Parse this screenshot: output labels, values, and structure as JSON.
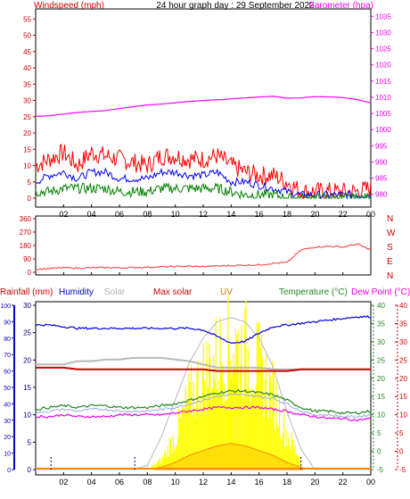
{
  "page": {
    "title": "24 hour graph day : 29 September 2022",
    "x_ticks": [
      "02",
      "04",
      "06",
      "08",
      "10",
      "12",
      "14",
      "16",
      "18",
      "20",
      "22",
      "00"
    ]
  },
  "colors": {
    "windspeed": "#ff0000",
    "wind_avg": "#0000ff",
    "wind_low": "#008000",
    "barometer": "#ff00ff",
    "direction": "#ff3333",
    "rain": "#000080",
    "humidity": "#0000dd",
    "solar": "#b8b8b8",
    "max_solar": "#cc0000",
    "uv": "#c87800",
    "temperature": "#228822",
    "dewpoint": "#ee00ee",
    "panel_bg": "#ffffff",
    "border": "#000000"
  },
  "chart_data": [
    {
      "type": "line",
      "panel": "wind-barometer",
      "title": "24 hour graph day : 29 September 2022",
      "left_axis": {
        "label": "Windspeed (mph)",
        "ticks": [
          "0",
          "5",
          "10",
          "15",
          "20",
          "25",
          "30",
          "35",
          "40",
          "45",
          "50",
          "55"
        ],
        "ylim": [
          0,
          57
        ]
      },
      "right_axis": {
        "label": "Barometer (hpa)",
        "ticks": [
          "980",
          "985",
          "990",
          "995",
          "1000",
          "1005",
          "1010",
          "1015",
          "1020",
          "1025",
          "1030",
          "1035"
        ],
        "ylim": [
          978.8,
          1036.2
        ]
      },
      "x": [
        0,
        1,
        2,
        3,
        4,
        5,
        6,
        7,
        8,
        9,
        10,
        11,
        12,
        13,
        14,
        15,
        16,
        17,
        18,
        19,
        20,
        21,
        22,
        23,
        24
      ],
      "series": [
        {
          "values": [
            10,
            12,
            14,
            10,
            14,
            13,
            12,
            11,
            10,
            13,
            13,
            12,
            12,
            13,
            10,
            8,
            7,
            7,
            5,
            2,
            2,
            2,
            2,
            2,
            3
          ],
          "axis": "left"
        },
        {
          "values": [
            5,
            7,
            8,
            6,
            8,
            8,
            6,
            6,
            6,
            8,
            8,
            7,
            7,
            8,
            5,
            5,
            4,
            3,
            2,
            1,
            1,
            1,
            1,
            1,
            1
          ],
          "axis": "left"
        },
        {
          "values": [
            2,
            2,
            3,
            3,
            3,
            3,
            2,
            2,
            2,
            3,
            3,
            3,
            3,
            3,
            2,
            1,
            1,
            1,
            0,
            0,
            0,
            0,
            0,
            0,
            0
          ],
          "axis": "left"
        },
        {
          "values": [
            1004.1,
            1004.3,
            1004.8,
            1005.3,
            1005.6,
            1005.9,
            1006.5,
            1007.1,
            1007.6,
            1007.9,
            1008.3,
            1008.7,
            1009.0,
            1009.2,
            1009.5,
            1009.8,
            1010.1,
            1010.3,
            1009.7,
            1009.8,
            1010.2,
            1010.1,
            1009.9,
            1009.3,
            1008.3
          ],
          "axis": "right"
        }
      ]
    },
    {
      "type": "line",
      "panel": "wind-direction",
      "left_axis": {
        "ticks": [
          "0",
          "90",
          "180",
          "270",
          "360"
        ],
        "ylim": [
          0,
          360
        ]
      },
      "right_labels": [
        "N",
        "W",
        "S",
        "E",
        "N"
      ],
      "x": [
        0,
        1,
        2,
        3,
        4,
        5,
        6,
        7,
        8,
        9,
        10,
        11,
        12,
        13,
        14,
        15,
        16,
        17,
        18,
        19,
        20,
        21,
        22,
        23,
        24
      ],
      "series": [
        {
          "name": "direction",
          "values": [
            20,
            25,
            30,
            28,
            30,
            32,
            30,
            32,
            34,
            36,
            38,
            40,
            38,
            42,
            45,
            48,
            50,
            60,
            65,
            150,
            170,
            175,
            170,
            190,
            150
          ]
        }
      ]
    },
    {
      "type": "line",
      "panel": "temperature-humidity",
      "header_labels": [
        "Rainfall (mm)",
        "Humidity",
        "Solar",
        "Max solar",
        "UV",
        "Temperature (°C)",
        "Dew Point (°C)"
      ],
      "axis_humidity": {
        "ticks": [
          "0",
          "10",
          "20",
          "30",
          "40",
          "50",
          "60",
          "70",
          "80",
          "90",
          "100"
        ],
        "ylim": [
          0,
          100
        ]
      },
      "axis_rain": {
        "ticks": [
          "0",
          "5",
          "10",
          "15",
          "20",
          "25",
          "30"
        ],
        "ylim": [
          0,
          30
        ]
      },
      "axis_temp": {
        "ticks": [
          "-5",
          "0",
          "5",
          "10",
          "15",
          "20",
          "25",
          "30",
          "35",
          "40"
        ],
        "ylim": [
          -5,
          40
        ]
      },
      "x": [
        0,
        1,
        2,
        3,
        4,
        5,
        6,
        7,
        8,
        9,
        10,
        11,
        12,
        13,
        14,
        15,
        16,
        17,
        18,
        19,
        20,
        21,
        22,
        23,
        24
      ],
      "series": [
        {
          "name": "Humidity",
          "values": [
            88,
            88,
            87,
            86,
            86,
            86,
            86,
            86,
            86,
            86,
            86,
            86,
            85,
            81,
            77,
            78,
            83,
            87,
            88,
            89,
            90,
            91,
            92,
            93,
            93
          ],
          "axis": "humidity"
        },
        {
          "name": "Max solar",
          "values": [
            62,
            62,
            62,
            61,
            61,
            61,
            61,
            61,
            61,
            61,
            61,
            61,
            61,
            60,
            60,
            60,
            60,
            60,
            60,
            61,
            61,
            61,
            61,
            61,
            61
          ],
          "axis": "humidity"
        },
        {
          "name": "Solar",
          "values": [
            64,
            64,
            64,
            66,
            66,
            67,
            67,
            68,
            68,
            68,
            67,
            66,
            64,
            62,
            62,
            62,
            62,
            61,
            61,
            61,
            61,
            61,
            61,
            61,
            61
          ],
          "axis": "humidity"
        },
        {
          "name": "Temperature (°C)",
          "values": [
            11.5,
            12,
            12.5,
            12,
            12.5,
            12.5,
            12,
            12,
            12,
            12.5,
            13,
            14,
            15,
            16,
            16.5,
            16.5,
            16,
            15.5,
            14,
            12,
            11,
            11,
            10.5,
            10.5,
            11
          ],
          "axis": "temp"
        },
        {
          "name": "Dew Point (°C)",
          "values": [
            9.5,
            9.5,
            10,
            9.5,
            9.5,
            9.5,
            10,
            10,
            10,
            10,
            10.5,
            11,
            11.5,
            12,
            12,
            12,
            12,
            11.5,
            11,
            10,
            9.5,
            9,
            9,
            8.5,
            9
          ],
          "axis": "temp"
        },
        {
          "name": "Rainfall (mm)",
          "values": [
            0,
            0,
            0,
            0,
            0,
            0,
            0,
            0,
            0,
            0,
            0,
            0,
            0,
            0,
            0,
            0,
            0,
            0,
            0,
            0,
            0,
            0,
            0,
            0,
            0
          ],
          "axis": "rain"
        },
        {
          "name": "UV",
          "values": [
            0,
            0,
            0,
            0,
            0,
            0,
            0,
            0,
            0,
            0.5,
            1.5,
            3,
            4,
            5,
            5.5,
            5,
            4,
            3,
            1.5,
            0.5,
            0,
            0,
            0,
            0,
            0
          ],
          "axis": "temp"
        }
      ],
      "solar_bars": [
        0,
        0,
        0,
        0,
        0,
        0,
        0,
        0,
        0,
        3,
        10,
        21,
        28,
        33,
        37,
        35,
        30,
        22,
        10,
        3,
        0,
        0,
        0,
        0,
        0
      ],
      "max_solar_curve": [
        0,
        0,
        0,
        0,
        0,
        0,
        0,
        0,
        1,
        8,
        17,
        26,
        32,
        36,
        37,
        36,
        32,
        25,
        14,
        5,
        0,
        0,
        0,
        0,
        0
      ]
    }
  ]
}
